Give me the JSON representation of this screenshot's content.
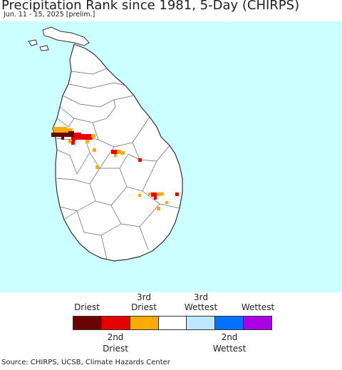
{
  "header": {
    "title": "Precipitation Rank since 1981, 5-Day (CHIRPS)",
    "subtitle": "Jun. 11 - 15, 2025 [prelim.]"
  },
  "map": {
    "ocean_color": "#ccffff",
    "land_color": "#ffffff",
    "border_color": "#555555"
  },
  "legend": {
    "items": [
      {
        "label_top": "Driest",
        "label_bottom": "",
        "color": "#6b0000"
      },
      {
        "label_top": "",
        "label_bottom": "2nd Driest",
        "color": "#e60000"
      },
      {
        "label_top": "3rd Driest",
        "label_bottom": "",
        "color": "#ffaa00"
      },
      {
        "label_top": "",
        "label_bottom": "",
        "color": "#ffffff"
      },
      {
        "label_top": "3rd Wettest",
        "label_bottom": "",
        "color": "#bee8ff"
      },
      {
        "label_top": "",
        "label_bottom": "2nd Wettest",
        "color": "#0070ff"
      },
      {
        "label_top": "Wettest",
        "label_bottom": "",
        "color": "#aa00e6"
      }
    ],
    "label_driest": "Driest",
    "label_3rd_driest_1": "3rd",
    "label_3rd_driest_2": "Driest",
    "label_3rd_wettest_1": "3rd",
    "label_3rd_wettest_2": "Wettest",
    "label_wettest": "Wettest",
    "label_2nd_driest_1": "2nd",
    "label_2nd_driest_2": "Driest",
    "label_2nd_wettest_1": "2nd",
    "label_2nd_wettest_2": "Wettest"
  },
  "footer": {
    "source": "Source: CHIRPS, UCSB, Climate Hazards Center"
  }
}
